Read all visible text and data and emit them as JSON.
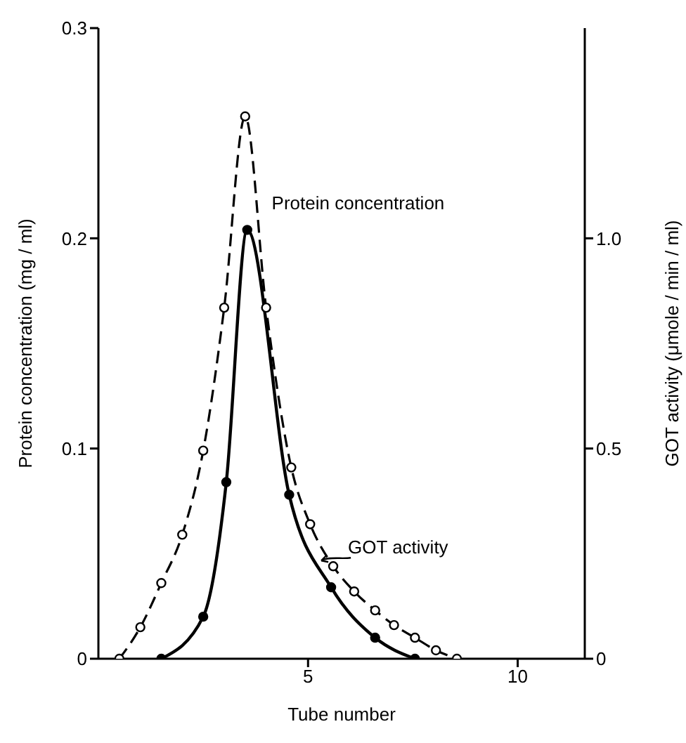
{
  "chart_data": {
    "type": "line",
    "xlabel": "Tube number",
    "ylabel": "Protein concentration (mg / ml)",
    "y2label": "GOT activity (μmole / min / ml)",
    "xlim": [
      0,
      11.6
    ],
    "xticks": [
      5,
      10
    ],
    "ylim": [
      0,
      0.3
    ],
    "yticks": [
      0,
      0.1,
      0.2,
      0.3
    ],
    "y2lim": [
      0,
      1.5
    ],
    "y2ticks": [
      0,
      0.5,
      {
        "value": 1,
        "label": "1.0"
      }
    ],
    "grid": false,
    "marker": "circle",
    "series": [
      {
        "name": "Protein concentration",
        "color": "#000000",
        "line_style": "dashed",
        "x": [
          0.5,
          1,
          1.5,
          2,
          2.5,
          3,
          3.5,
          4,
          4.6,
          5.05,
          5.6,
          6.1,
          6.6,
          7.05,
          7.55,
          8.05,
          8.55
        ],
        "values": [
          0,
          0.015,
          0.036,
          0.059,
          0.099,
          0.167,
          0.258,
          0.167,
          0.091,
          0.064,
          0.044,
          0.032,
          0.023,
          0.016,
          0.01,
          0.004,
          0
        ]
      },
      {
        "name": "GOT activity",
        "color": "#000000",
        "line_style": "solid",
        "axis": "y2",
        "x": [
          1.5,
          2.5,
          3.05,
          3.55,
          4.55,
          5.55,
          6.6,
          7.55
        ],
        "values": [
          0,
          0.1,
          0.42,
          1.02,
          0.39,
          0.17,
          0.05,
          0
        ]
      }
    ]
  }
}
